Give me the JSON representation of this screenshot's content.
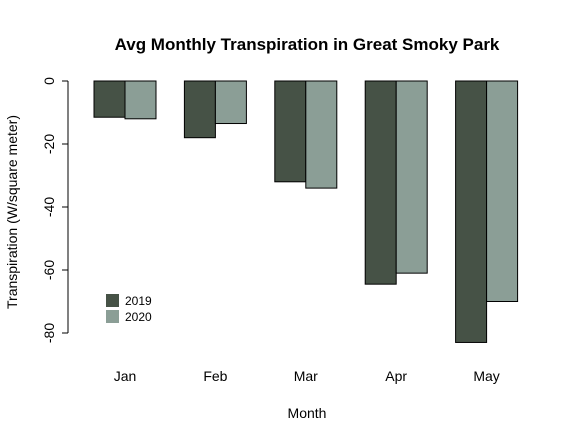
{
  "chart_data": {
    "type": "bar",
    "title": "Avg Monthly Transpiration in Great Smoky Park",
    "xlabel": "Month",
    "ylabel": "Transpiration (W/square meter)",
    "categories": [
      "Jan",
      "Feb",
      "Mar",
      "Apr",
      "May"
    ],
    "series": [
      {
        "name": "2019",
        "color": "#465246",
        "values": [
          -11.5,
          -18,
          -32,
          -64.5,
          -83
        ]
      },
      {
        "name": "2020",
        "color": "#8b9e96",
        "values": [
          -12,
          -13.5,
          -34,
          -61,
          -70
        ]
      }
    ],
    "ylim": [
      -85,
      0
    ],
    "yticks": [
      0,
      -20,
      -40,
      -60,
      -80
    ],
    "ytick_labels": [
      "0",
      "-20",
      "-40",
      "-60",
      "-80"
    ],
    "grid": false,
    "legend_position": "bottom-left"
  }
}
